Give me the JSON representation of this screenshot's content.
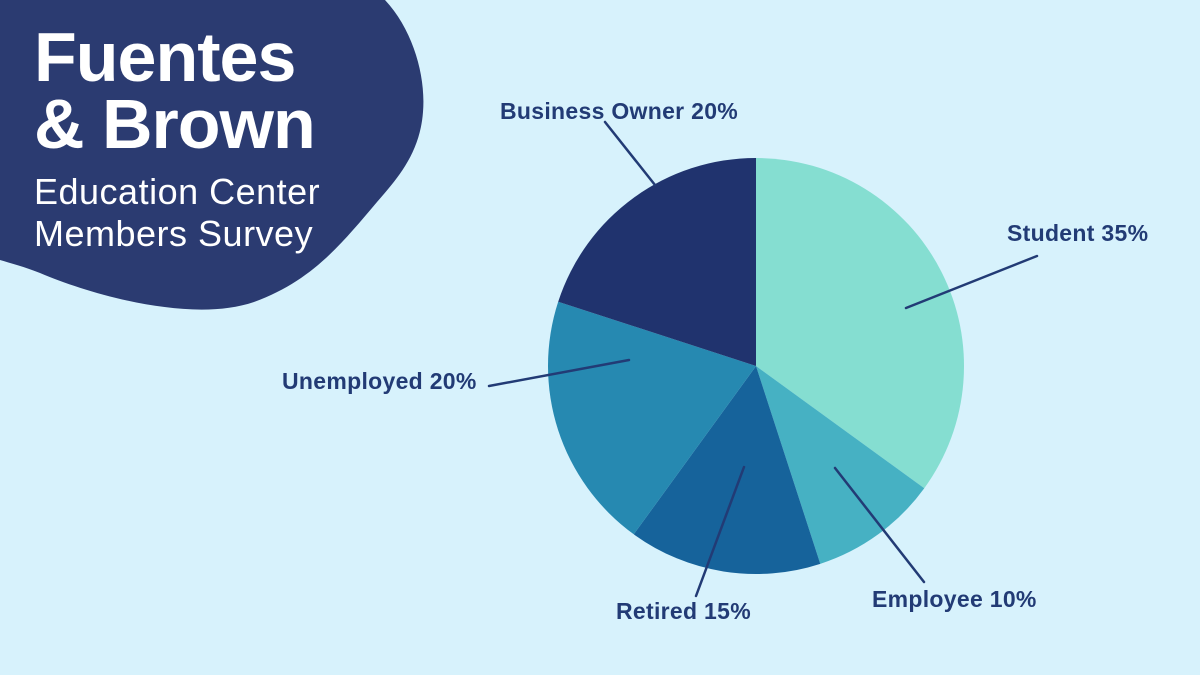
{
  "background_color": "#d7f2fc",
  "brand": {
    "blob_color": "#2b3b71",
    "text_color": "#ffffff",
    "title_line1": "Fuentes",
    "title_line2": "& Brown",
    "subtitle_line1": "Education Center",
    "subtitle_line2": "Members Survey"
  },
  "chart_data": {
    "type": "pie",
    "title": "Education Center Members Survey",
    "unit": "%",
    "start_angle_deg": 0,
    "direction": "clockwise",
    "legend_position": "callout-labels-with-leader-lines",
    "categories": [
      "Student",
      "Employee",
      "Retired",
      "Unemployed",
      "Business Owner"
    ],
    "values": [
      35,
      10,
      15,
      20,
      20
    ],
    "segments": [
      {
        "label": "Student",
        "value": 35,
        "display": "Student 35%",
        "color": "#85ded1"
      },
      {
        "label": "Employee",
        "value": 10,
        "display": "Employee 10%",
        "color": "#46b1c3"
      },
      {
        "label": "Retired",
        "value": 15,
        "display": "Retired 15%",
        "color": "#16639b"
      },
      {
        "label": "Unemployed",
        "value": 20,
        "display": "Unemployed 20%",
        "color": "#2689b1"
      },
      {
        "label": "Business Owner",
        "value": 20,
        "display": "Business Owner 20%",
        "color": "#20336e"
      }
    ],
    "label_color": "#223b75",
    "leader_line_color": "#223b75"
  }
}
